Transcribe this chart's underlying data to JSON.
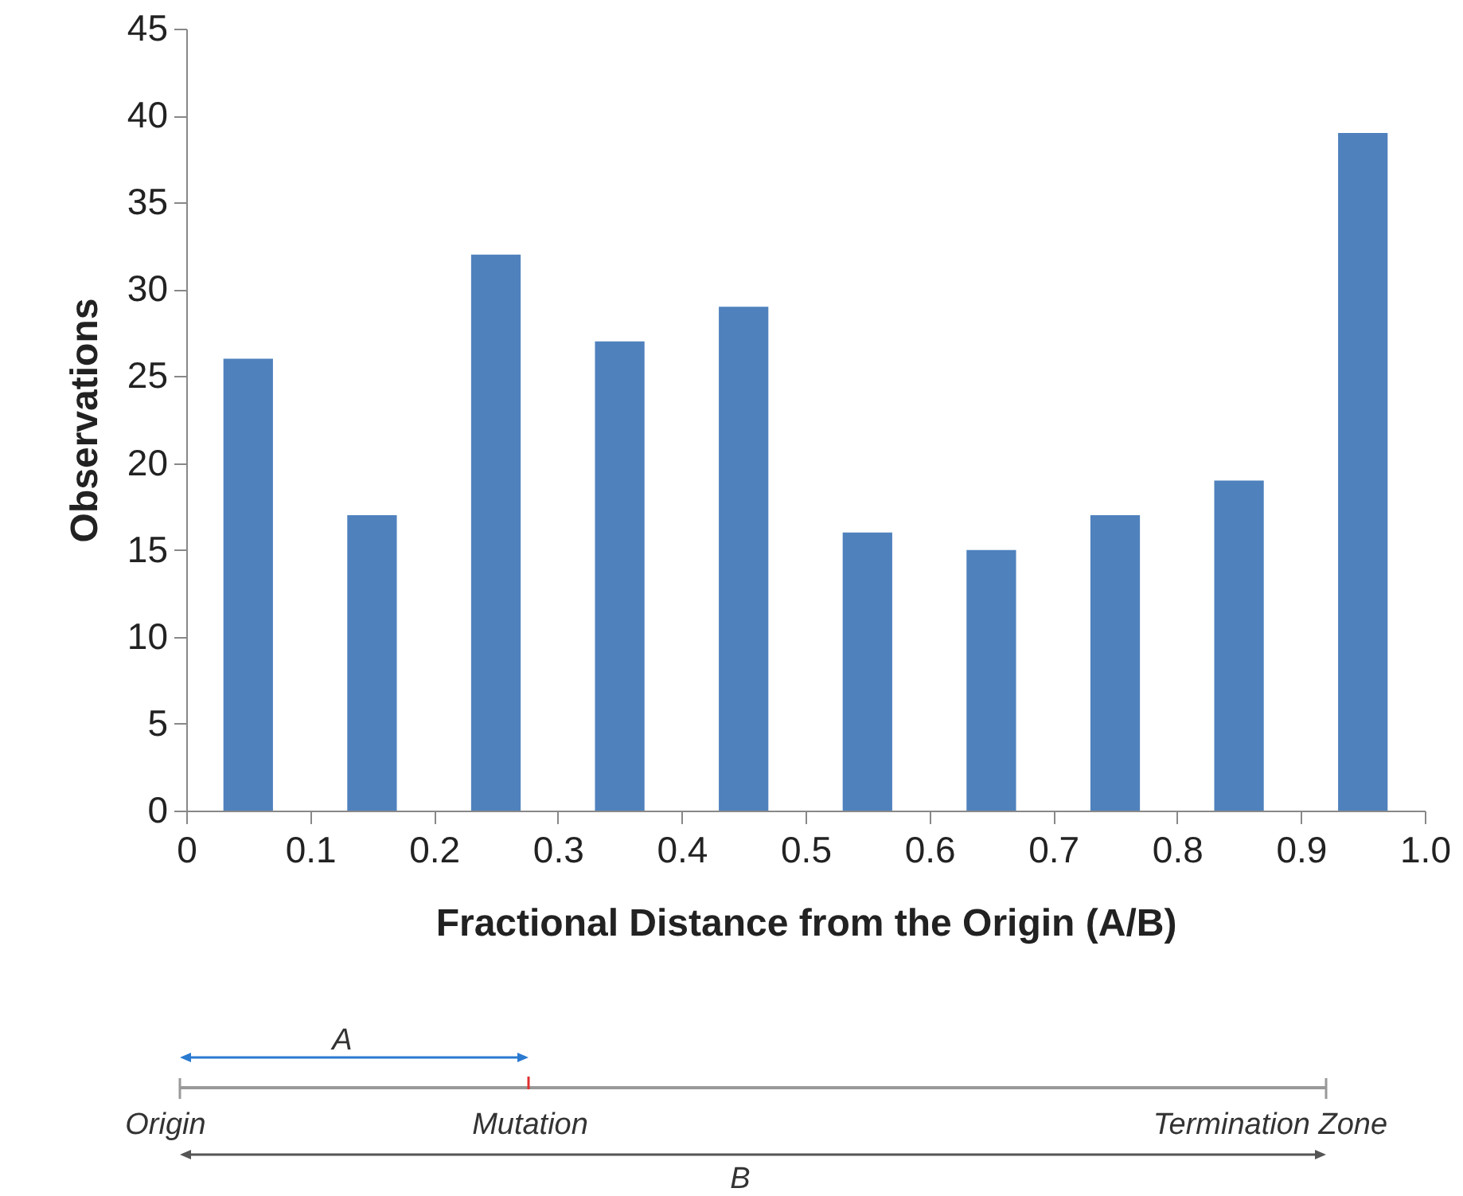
{
  "chart_data": {
    "type": "histogram",
    "xlabel": "Fractional Distance from the Origin (A/B)",
    "ylabel": "Observations",
    "bins": [
      0,
      0.1,
      0.2,
      0.3,
      0.4,
      0.5,
      0.6,
      0.7,
      0.8,
      0.9,
      1.0
    ],
    "values": [
      26,
      17,
      32,
      27,
      29,
      16,
      15,
      17,
      19,
      39
    ],
    "color": "#4f81bd",
    "xlim": [
      0,
      1
    ],
    "xticks": [
      0,
      0.1,
      0.2,
      0.3,
      0.4,
      0.5,
      0.6,
      0.7,
      0.8,
      0.9,
      {
        "value": 1,
        "label": "1.0"
      }
    ],
    "ylim": [
      0,
      45
    ],
    "yticks": [
      0,
      5,
      10,
      15,
      20,
      25,
      30,
      35,
      40,
      45
    ],
    "grid": false,
    "annotations": [
      "A",
      "Origin",
      "Mutation",
      "Termination Zone",
      "B"
    ]
  }
}
